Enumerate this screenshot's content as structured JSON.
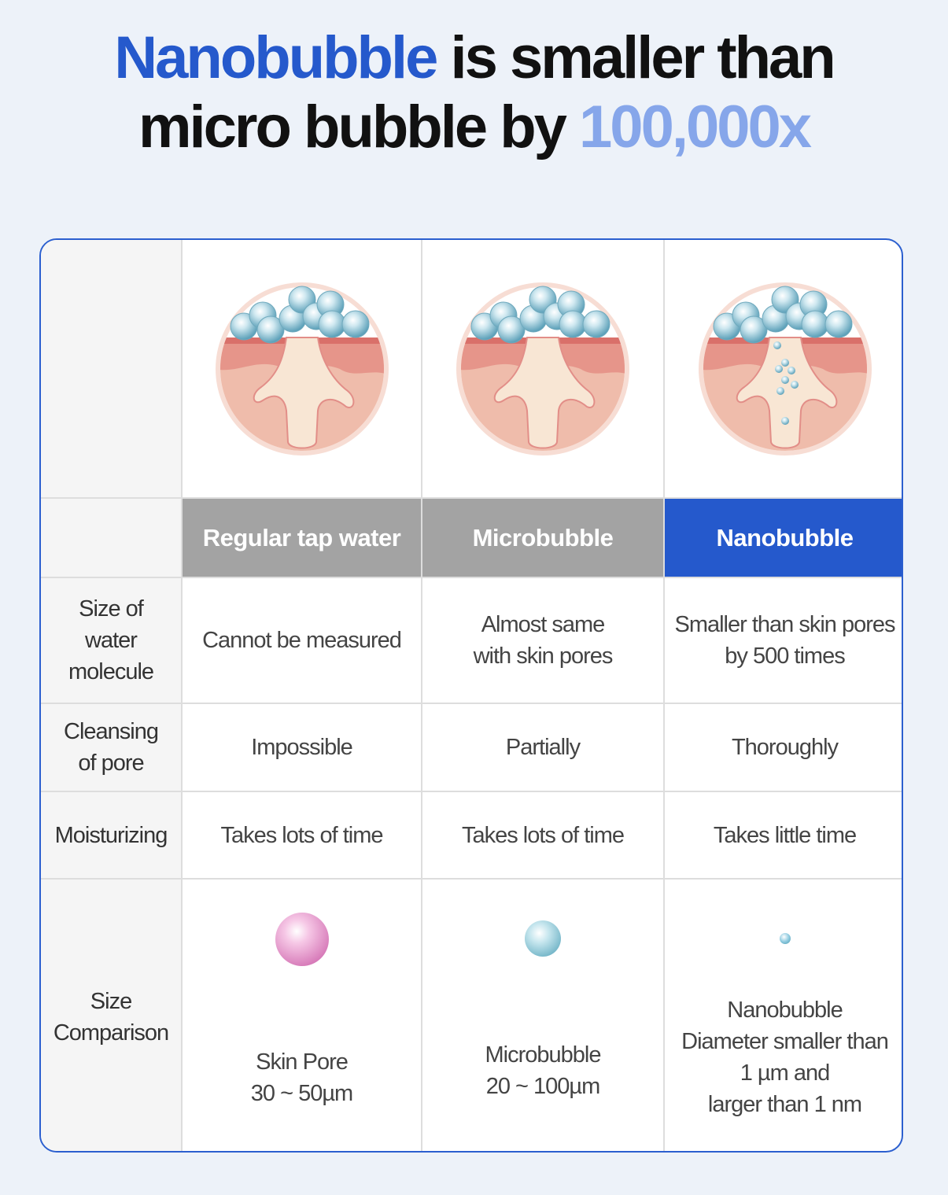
{
  "title": {
    "part1": "Nanobubble",
    "part2": " is smaller than",
    "part3": "micro bubble by ",
    "part4": "100,000x"
  },
  "colors": {
    "accent": "#2559cc",
    "accent_light": "#86a6ea",
    "header_gray": "#a3a3a3"
  },
  "columns": [
    "Regular tap water",
    "Microbubble",
    "Nanobubble"
  ],
  "rows": [
    {
      "label": "Size of\nwater\nmolecule",
      "values": [
        "Cannot be measured",
        "Almost same\nwith skin pores",
        "Smaller than skin pores\nby 500 times"
      ]
    },
    {
      "label": "Cleansing\nof pore",
      "values": [
        "Impossible",
        "Partially",
        "Thoroughly"
      ]
    },
    {
      "label": "Moisturizing",
      "values": [
        "Takes lots of time",
        "Takes lots of time",
        "Takes little time"
      ]
    },
    {
      "label": "Size\nComparison",
      "values": [
        "Skin Pore\n30 ~ 50µm",
        "Microbubble\n20 ~ 100µm",
        "Nanobubble\nDiameter smaller than\n1 µm and\nlarger than 1 nm"
      ]
    }
  ]
}
